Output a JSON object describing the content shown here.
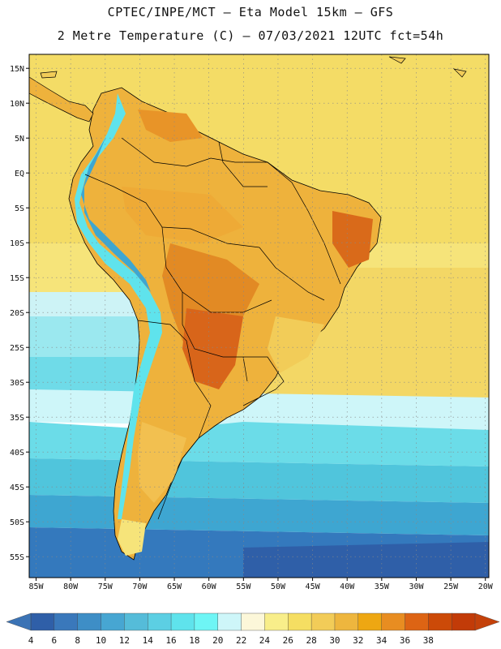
{
  "title_line1": "CPTEC/INPE/MCT –  Eta Model 15km – GFS",
  "title_line2": "2 Metre Temperature (C) – 07/03/2021 12UTC fct=54h",
  "chart_data": {
    "type": "heatmap",
    "title": "2 Metre Temperature (C)",
    "model": "CPTEC/INPE/MCT Eta Model 15km - GFS",
    "run": "07/03/2021 12UTC",
    "forecast": "fct=54h",
    "units": "C",
    "lon_range": [
      -86,
      -19.5
    ],
    "lat_range": [
      -58,
      17
    ],
    "x_ticks": [
      "85W",
      "80W",
      "75W",
      "70W",
      "65W",
      "60W",
      "55W",
      "50W",
      "45W",
      "40W",
      "35W",
      "30W",
      "25W",
      "20W"
    ],
    "x_tick_values": [
      -85,
      -80,
      -75,
      -70,
      -65,
      -60,
      -55,
      -50,
      -45,
      -40,
      -35,
      -30,
      -25,
      -20
    ],
    "y_ticks": [
      "15N",
      "10N",
      "5N",
      "EQ",
      "5S",
      "10S",
      "15S",
      "20S",
      "25S",
      "30S",
      "35S",
      "40S",
      "45S",
      "50S",
      "55S"
    ],
    "y_tick_values": [
      15,
      10,
      5,
      0,
      -5,
      -10,
      -15,
      -20,
      -25,
      -30,
      -35,
      -40,
      -45,
      -50,
      -55
    ],
    "colorbar_labels": [
      "4",
      "6",
      "8",
      "10",
      "12",
      "14",
      "16",
      "18",
      "20",
      "22",
      "24",
      "26",
      "28",
      "30",
      "32",
      "34",
      "36",
      "38"
    ],
    "colorbar_colors": [
      "#2f5fa8",
      "#3a78bb",
      "#3e8ec6",
      "#47a6d2",
      "#55bcd9",
      "#5ccfe3",
      "#5fe3ec",
      "#6ef5f5",
      "#cef6f9",
      "#fcf7d9",
      "#f8ee8a",
      "#f5de62",
      "#f2cc58",
      "#eeb63e",
      "#eea712",
      "#e88d21",
      "#dd6414",
      "#cc4a08",
      "#c23b08"
    ],
    "colorbar_endcaps": [
      "#3b73b5",
      "#c4410a"
    ]
  }
}
